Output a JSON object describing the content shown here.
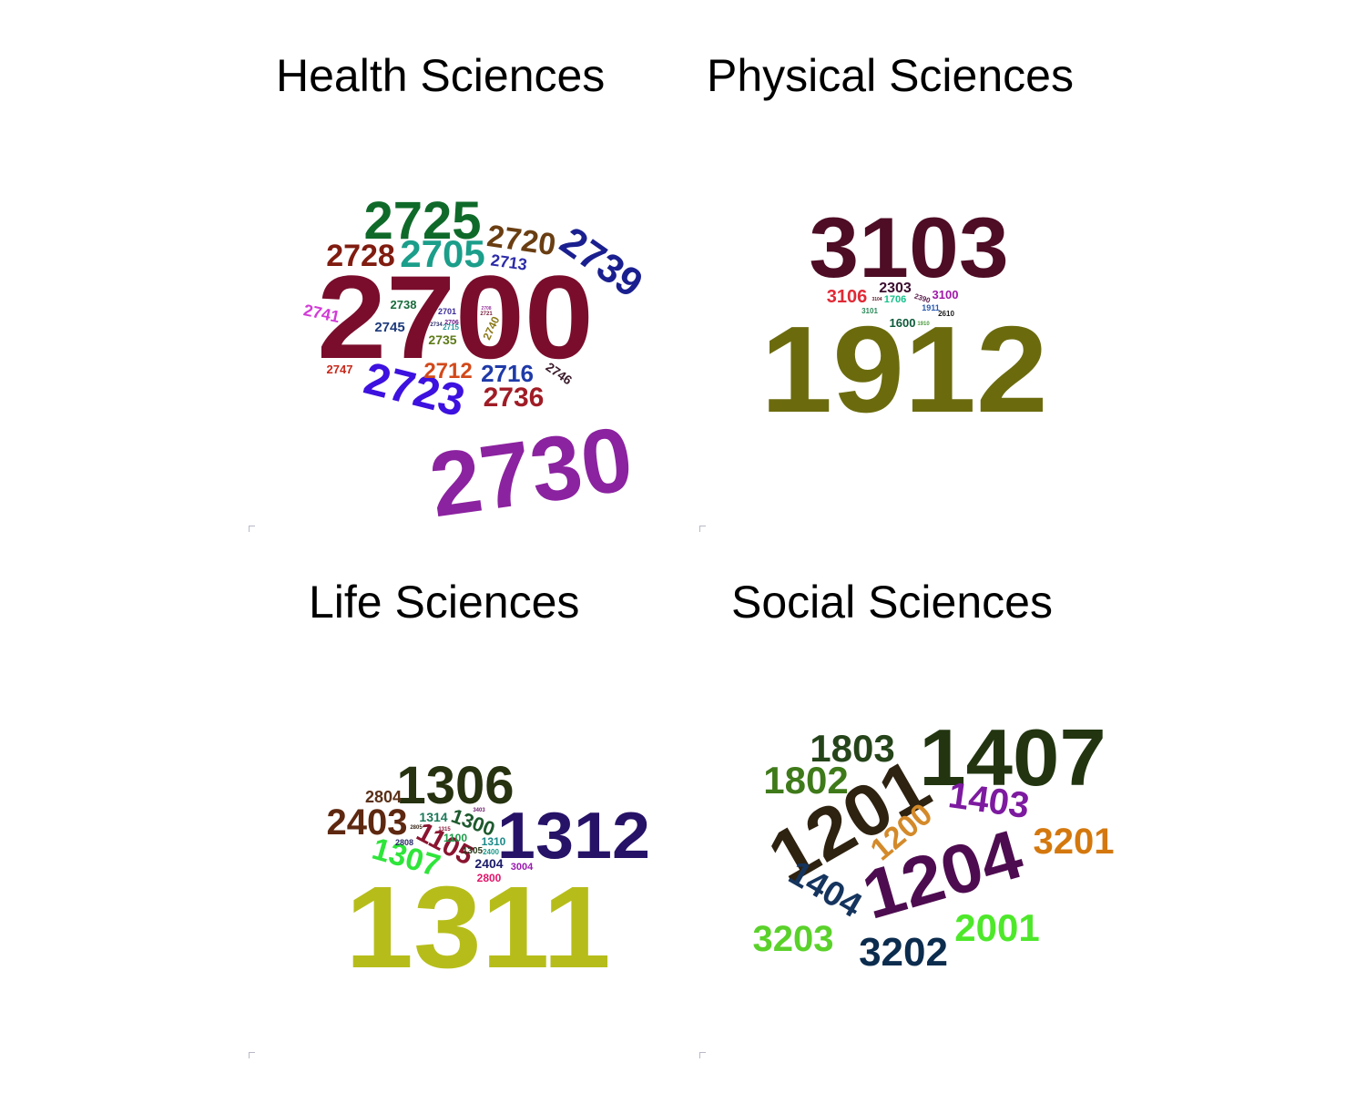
{
  "panels": [
    {
      "title": "Health Sciences",
      "words": [
        {
          "text": "2700",
          "color": "#7a0d2c"
        },
        {
          "text": "2730",
          "color": "#8b22a0"
        },
        {
          "text": "2725",
          "color": "#0f6a2a"
        },
        {
          "text": "2705",
          "color": "#1b9e8a"
        },
        {
          "text": "2723",
          "color": "#3d11df"
        },
        {
          "text": "2739",
          "color": "#1a1f8f"
        },
        {
          "text": "2728",
          "color": "#801c10"
        },
        {
          "text": "2720",
          "color": "#6a3e12"
        },
        {
          "text": "2736",
          "color": "#a01c26"
        },
        {
          "text": "2716",
          "color": "#1f3aa8"
        },
        {
          "text": "2712",
          "color": "#d2491a"
        },
        {
          "text": "2713",
          "color": "#2c2ba8"
        },
        {
          "text": "2741",
          "color": "#d13bd6"
        },
        {
          "text": "2745",
          "color": "#1d3a7a"
        },
        {
          "text": "2738",
          "color": "#1a6b3c"
        },
        {
          "text": "2735",
          "color": "#5d7a18"
        },
        {
          "text": "2740",
          "color": "#8a7a1a"
        },
        {
          "text": "2747",
          "color": "#c8281a"
        },
        {
          "text": "2746",
          "color": "#3a1a2a"
        },
        {
          "text": "2701",
          "color": "#3a2a9a"
        },
        {
          "text": "2706",
          "color": "#6a1a8a"
        },
        {
          "text": "2715",
          "color": "#2a9aa0"
        },
        {
          "text": "2721",
          "color": "#7a1a3a"
        },
        {
          "text": "2708",
          "color": "#9a3aa0"
        },
        {
          "text": "2734",
          "color": "#2a2a6a"
        }
      ]
    },
    {
      "title": "Physical Sciences",
      "words": [
        {
          "text": "1912",
          "color": "#6b6b0e"
        },
        {
          "text": "3103",
          "color": "#4e0c25"
        },
        {
          "text": "3106",
          "color": "#e02a36"
        },
        {
          "text": "2303",
          "color": "#3a0d2e"
        },
        {
          "text": "3100",
          "color": "#a017a8"
        },
        {
          "text": "1706",
          "color": "#16c28a"
        },
        {
          "text": "1600",
          "color": "#0d5a3a"
        },
        {
          "text": "2390",
          "color": "#5a1a4a"
        },
        {
          "text": "1911",
          "color": "#2a5ab0"
        },
        {
          "text": "3101",
          "color": "#2a8a5a"
        },
        {
          "text": "2610",
          "color": "#1a1a1a"
        },
        {
          "text": "1910",
          "color": "#4a9a3a"
        },
        {
          "text": "3104",
          "color": "#5a1a2a"
        }
      ]
    },
    {
      "title": "Life Sciences",
      "words": [
        {
          "text": "1311",
          "color": "#b6bd1a"
        },
        {
          "text": "1312",
          "color": "#261267"
        },
        {
          "text": "1306",
          "color": "#263210"
        },
        {
          "text": "2403",
          "color": "#5e2810"
        },
        {
          "text": "1307",
          "color": "#2ee53a"
        },
        {
          "text": "1105",
          "color": "#8a1530"
        },
        {
          "text": "1300",
          "color": "#1e5a2e"
        },
        {
          "text": "2804",
          "color": "#5a3018"
        },
        {
          "text": "1314",
          "color": "#1e7a5a"
        },
        {
          "text": "1100",
          "color": "#1e9a4a"
        },
        {
          "text": "1310",
          "color": "#1a8a8a"
        },
        {
          "text": "2404",
          "color": "#1a1a6a"
        },
        {
          "text": "3004",
          "color": "#9a1ab0"
        },
        {
          "text": "2800",
          "color": "#e0156a"
        },
        {
          "text": "1305",
          "color": "#2a3a1a"
        },
        {
          "text": "2808",
          "color": "#2a2a6a"
        },
        {
          "text": "2400",
          "color": "#1a9a8a"
        },
        {
          "text": "2805",
          "color": "#3a2a1a"
        },
        {
          "text": "1315",
          "color": "#8a1a3a"
        },
        {
          "text": "3403",
          "color": "#6a1a6a"
        }
      ]
    },
    {
      "title": "Social Sciences",
      "words": [
        {
          "text": "1407",
          "color": "#223510"
        },
        {
          "text": "1201",
          "color": "#2e2210"
        },
        {
          "text": "1204",
          "color": "#4e0c50"
        },
        {
          "text": "1803",
          "color": "#25441a"
        },
        {
          "text": "1802",
          "color": "#3f7a1a"
        },
        {
          "text": "1403",
          "color": "#7d1aa0"
        },
        {
          "text": "1200",
          "color": "#d48a2a"
        },
        {
          "text": "3201",
          "color": "#d4780e"
        },
        {
          "text": "1404",
          "color": "#15345e"
        },
        {
          "text": "3203",
          "color": "#5ad12a"
        },
        {
          "text": "3202",
          "color": "#0c2c4e"
        },
        {
          "text": "2001",
          "color": "#4ee82a"
        }
      ]
    }
  ]
}
